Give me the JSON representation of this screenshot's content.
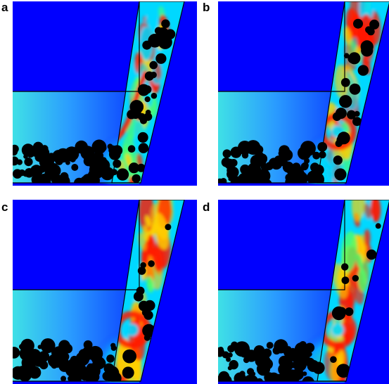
{
  "panels": [
    {
      "label": "a"
    },
    {
      "label": "b"
    },
    {
      "label": "c"
    },
    {
      "label": "d"
    }
  ],
  "colors": {
    "background": "#0000ff",
    "chamber_gradient": [
      "#3fe0e6",
      "#2a9cff",
      "#0a3cff"
    ],
    "jet_hot": "#ff1a00",
    "jet_warm": "#ffd000",
    "jet_mid": "#4dff6a",
    "jet_cool": "#00d8ff",
    "particle": "#000000",
    "outline": "#000000"
  }
}
